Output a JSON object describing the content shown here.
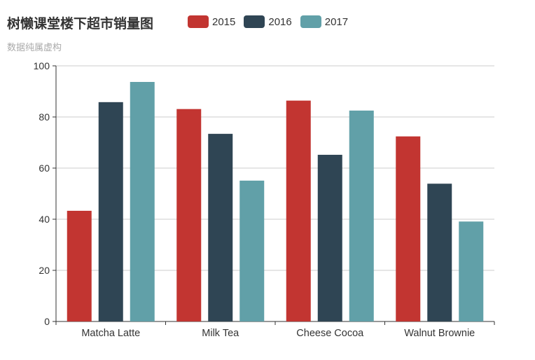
{
  "title": "树懒课堂楼下超市销量图",
  "subtitle": "数据纯属虚构",
  "colors": {
    "2015": "#c23531",
    "2016": "#2f4554",
    "2017": "#61a0a8"
  },
  "chart_data": {
    "type": "bar",
    "title": "树懒课堂楼下超市销量图",
    "subtitle": "数据纯属虚构",
    "categories": [
      "Matcha Latte",
      "Milk Tea",
      "Cheese Cocoa",
      "Walnut Brownie"
    ],
    "series": [
      {
        "name": "2015",
        "values": [
          43.3,
          83.1,
          86.4,
          72.4
        ]
      },
      {
        "name": "2016",
        "values": [
          85.8,
          73.4,
          65.2,
          53.9
        ]
      },
      {
        "name": "2017",
        "values": [
          93.7,
          55.1,
          82.5,
          39.1
        ]
      }
    ],
    "ylim": [
      0,
      100
    ],
    "yticks": [
      0,
      20,
      40,
      60,
      80,
      100
    ],
    "grid": true,
    "legend": "top"
  }
}
